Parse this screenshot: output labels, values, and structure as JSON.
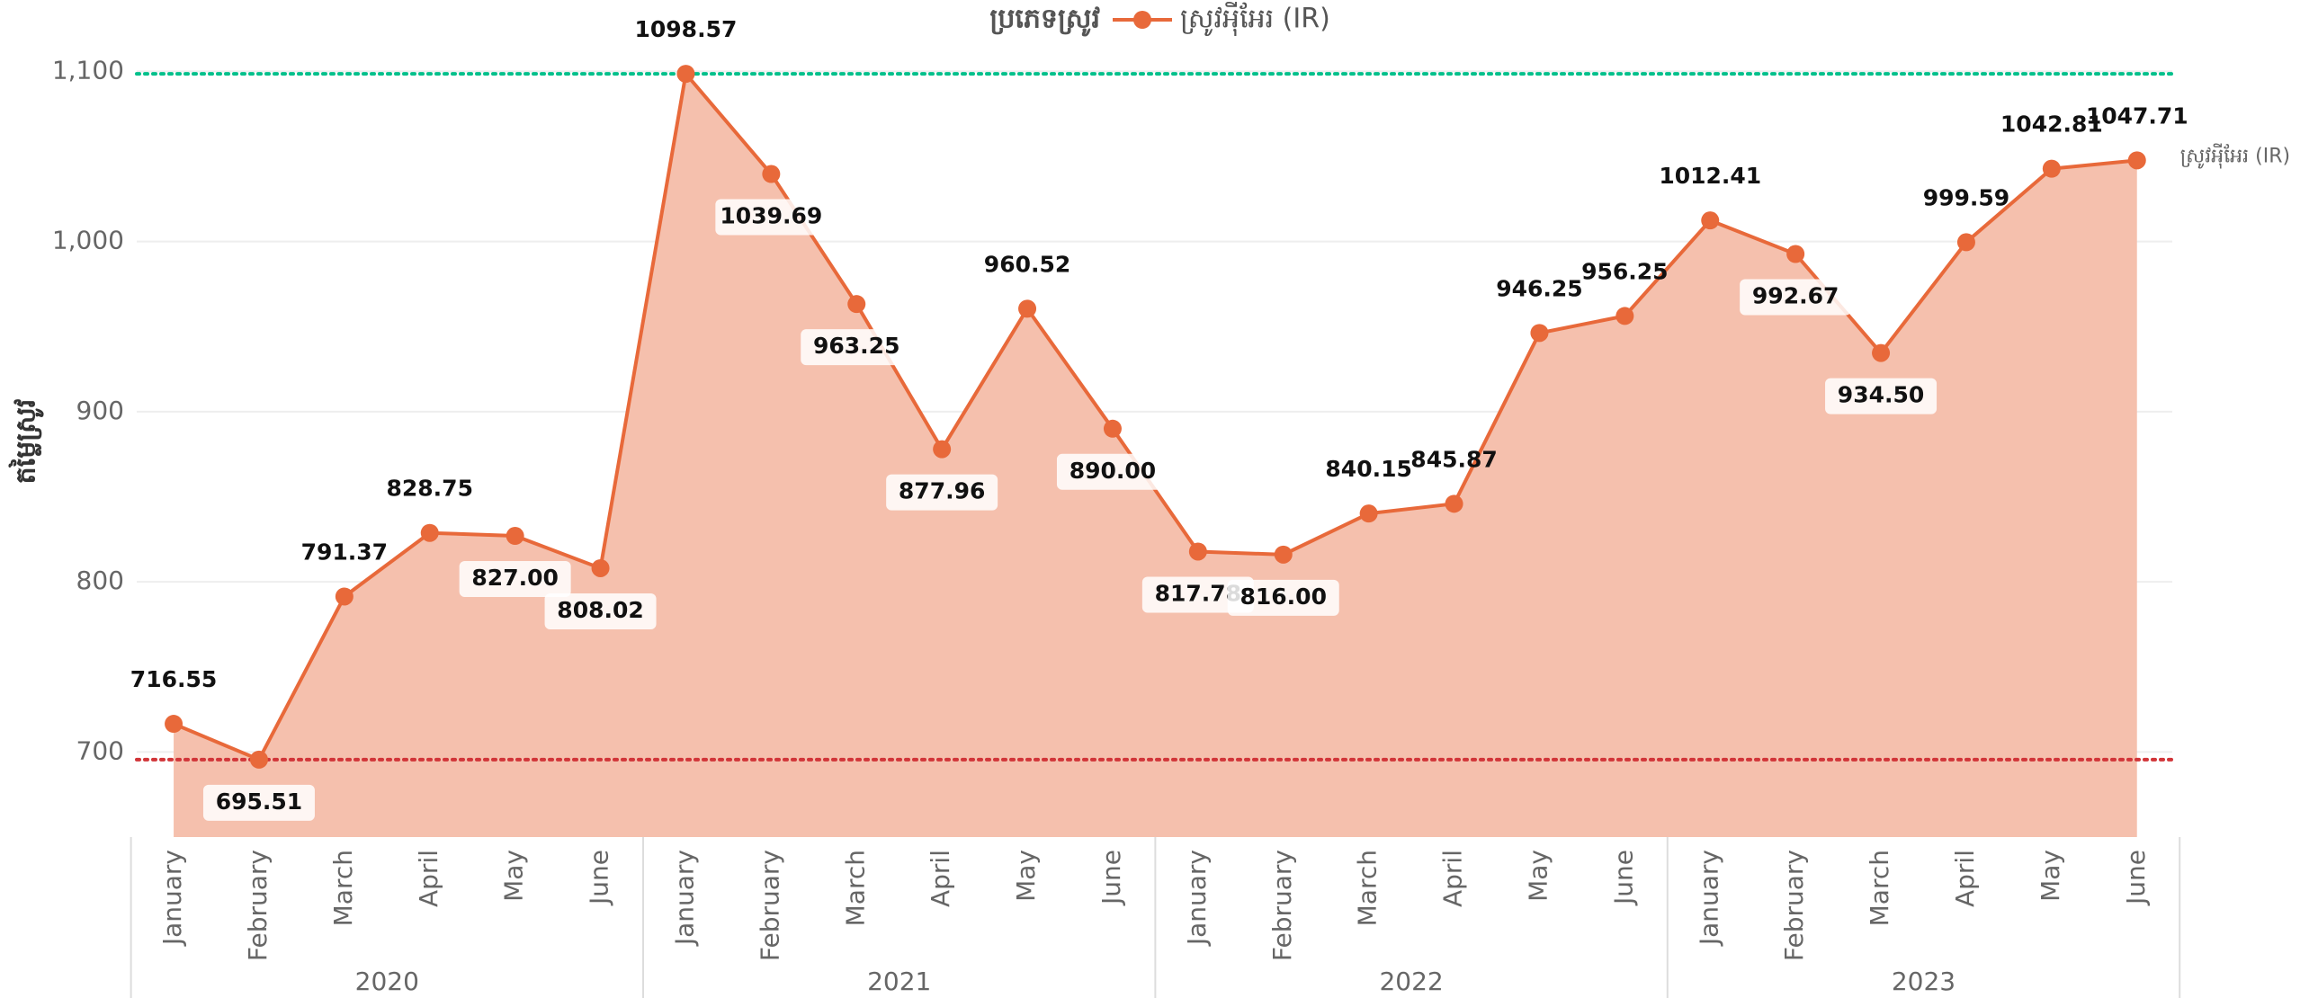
{
  "chart_data": {
    "type": "area",
    "legend_title": "ប្រភេទស្រូវ",
    "y_axis_label": "តម្លៃស្រូវ",
    "categories": [
      "January",
      "February",
      "March",
      "April",
      "May",
      "June",
      "January",
      "February",
      "March",
      "April",
      "May",
      "June",
      "January",
      "February",
      "March",
      "April",
      "May",
      "June",
      "January",
      "February",
      "March",
      "April",
      "May",
      "June"
    ],
    "years": [
      "2020",
      "2021",
      "2022",
      "2023"
    ],
    "series": [
      {
        "name": "ស្រូវអុីអែរ (IR)",
        "color": "#e8693a",
        "fill": "#f5c0ad",
        "values": [
          716.55,
          695.51,
          791.37,
          828.75,
          827.0,
          808.02,
          1098.57,
          1039.69,
          963.25,
          877.96,
          960.52,
          890.0,
          817.78,
          816.0,
          840.15,
          845.87,
          946.25,
          956.25,
          1012.41,
          992.67,
          934.5,
          999.59,
          1042.81,
          1047.71
        ],
        "value_labels": [
          "716.55",
          "695.51",
          "791.37",
          "828.75",
          "827.00",
          "808.02",
          "1098.57",
          "1039.69",
          "963.25",
          "877.96",
          "960.52",
          "890.00",
          "817.78",
          "816.00",
          "840.15",
          "845.87",
          "946.25",
          "956.25",
          "1012.41",
          "992.67",
          "934.50",
          "999.59",
          "1042.81",
          "1047.71"
        ]
      }
    ],
    "ylim": [
      650,
      1115
    ],
    "yticks": [
      {
        "value": 700,
        "label": "700"
      },
      {
        "value": 800,
        "label": "800"
      },
      {
        "value": 900,
        "label": "900"
      },
      {
        "value": 1000,
        "label": "1,000"
      },
      {
        "value": 1100,
        "label": "1,100"
      }
    ],
    "grid": true,
    "reference_lines": [
      {
        "value": 1098.57,
        "color": "#00c08b"
      },
      {
        "value": 695.51,
        "color": "#d13438"
      }
    ]
  }
}
